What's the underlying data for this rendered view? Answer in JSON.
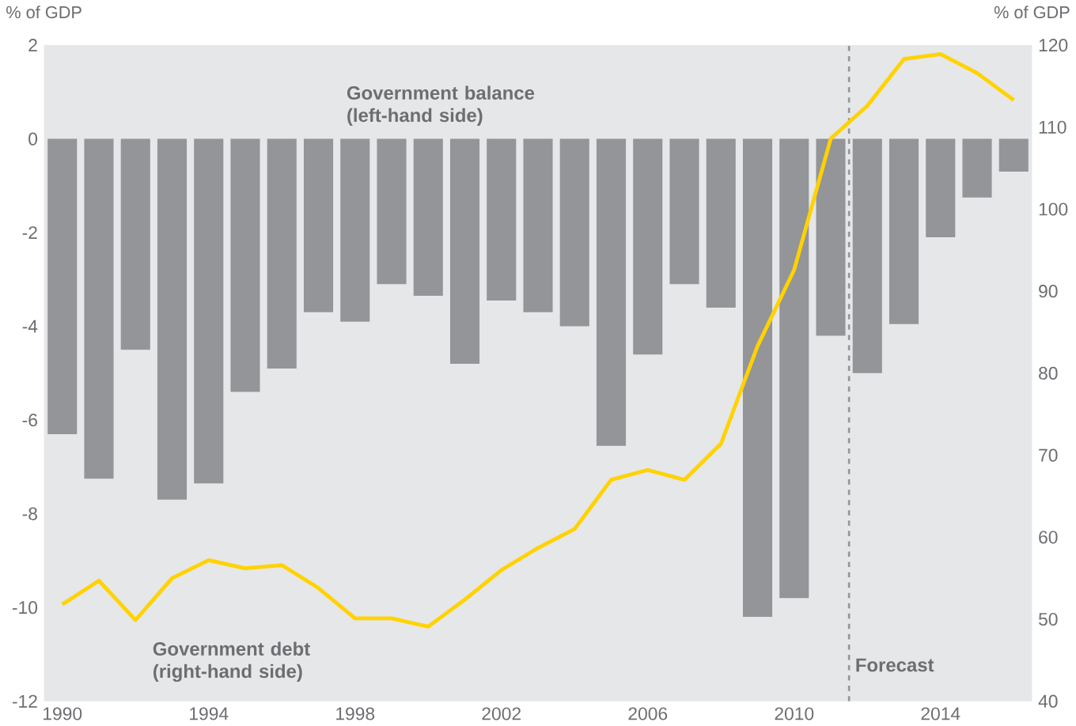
{
  "chart_data": {
    "type": "bar",
    "ylabel": "% of GDP",
    "y2label": "% of GDP",
    "x": [
      1990,
      1991,
      1992,
      1993,
      1994,
      1995,
      1996,
      1997,
      1998,
      1999,
      2000,
      2001,
      2002,
      2003,
      2004,
      2005,
      2006,
      2007,
      2008,
      2009,
      2010,
      2011,
      2012,
      2013,
      2014,
      2015,
      2016
    ],
    "xlim": [
      1989.5,
      2016.5
    ],
    "xticks": [
      1990,
      1994,
      1998,
      2002,
      2006,
      2010,
      2014
    ],
    "ylim": [
      -12,
      2
    ],
    "yticks": [
      -12,
      -10,
      -8,
      -6,
      -4,
      -2,
      0,
      2
    ],
    "y2lim": [
      40,
      120
    ],
    "y2ticks": [
      40,
      50,
      60,
      70,
      80,
      90,
      100,
      110,
      120
    ],
    "series": [
      {
        "name": "Government balance (left-hand side)",
        "color": "#939598",
        "values": [
          -6.3,
          -7.25,
          -4.5,
          -7.7,
          -7.35,
          -5.4,
          -4.9,
          -3.7,
          -3.9,
          -3.1,
          -3.35,
          -4.8,
          -3.45,
          -3.7,
          -4.0,
          -6.55,
          -4.6,
          -3.1,
          -3.6,
          -10.2,
          -9.8,
          -4.2,
          -5.0,
          -3.95,
          -2.1,
          -1.25,
          -0.7
        ]
      },
      {
        "name": "Government debt (right-hand side)",
        "type": "line",
        "axis": "y2",
        "color": "#ffd200",
        "values": [
          51.8,
          54.7,
          49.9,
          55.0,
          57.2,
          56.2,
          56.6,
          53.8,
          50.1,
          50.1,
          49.1,
          52.4,
          56.0,
          58.7,
          61.0,
          67.0,
          68.2,
          67.0,
          71.4,
          83.3,
          92.6,
          108.6,
          112.6,
          118.3,
          118.9,
          116.6,
          113.3
        ]
      }
    ],
    "ref_lines": [
      {
        "axis": "x",
        "value": 2011.5,
        "label": "Forecast",
        "color": "#939598",
        "line_style": "dashed"
      }
    ],
    "grid": false,
    "marker": "none",
    "line_style": "solid"
  }
}
